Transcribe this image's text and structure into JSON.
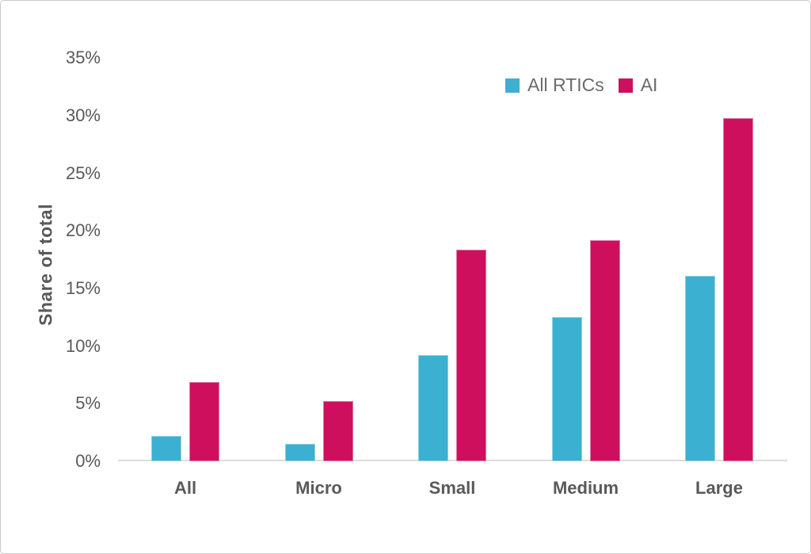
{
  "chart_data": {
    "type": "bar",
    "title": "",
    "categories": [
      "All",
      "Micro",
      "Small",
      "Medium",
      "Large"
    ],
    "series": [
      {
        "name": "All RTICs",
        "color": "#3cb0d1",
        "border_color": "#8fd3e4",
        "values": [
          2.2,
          1.5,
          9.2,
          12.5,
          16.1
        ]
      },
      {
        "name": "AI",
        "color": "#ce0f5e",
        "border_color": "#df7ba4",
        "values": [
          6.9,
          5.2,
          18.4,
          19.2,
          29.8
        ]
      }
    ],
    "xlabel": "",
    "ylabel": "Share of total",
    "ylim": [
      0,
      35
    ],
    "ytick_step": 5,
    "ytick_labels": [
      "0%",
      "5%",
      "10%",
      "15%",
      "20%",
      "25%",
      "30%",
      "35%"
    ],
    "grid": false,
    "legend_position": "top-right"
  },
  "colors": {
    "axis_line": "#dcdcdc",
    "tick_text": "#595959",
    "axis_title_text": "#595959",
    "legend_text": "#6b6b6b",
    "frame_border": "#c9c9c9",
    "background": "#ffffff"
  }
}
